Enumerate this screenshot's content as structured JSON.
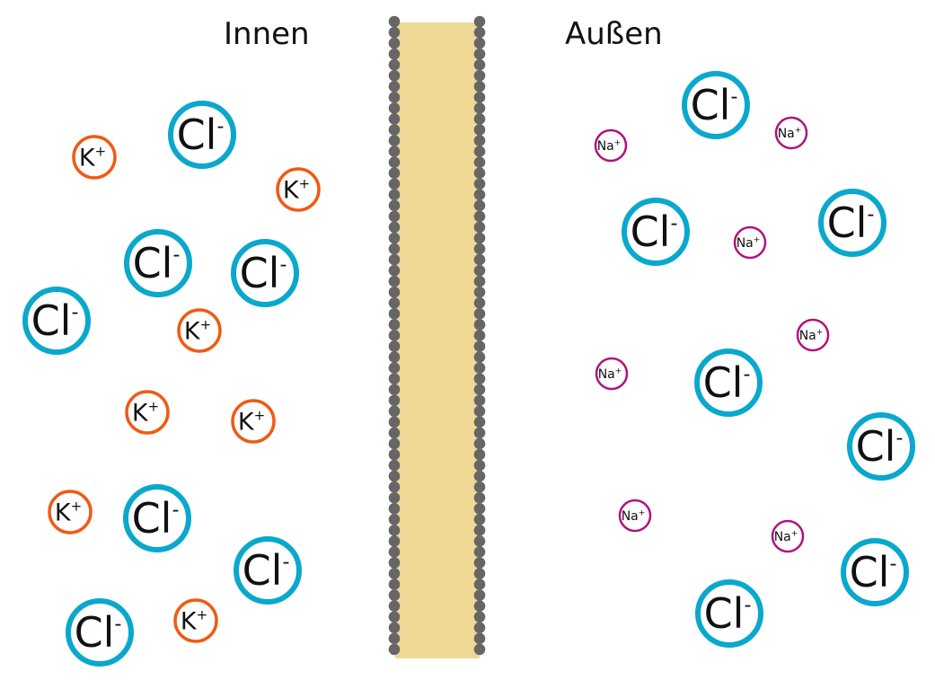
{
  "labels": {
    "inside": "Innen",
    "outside": "Außen"
  },
  "ions": {
    "chloride": {
      "symbol": "Cl",
      "charge": "-",
      "color": "#0aa8cc"
    },
    "potassium": {
      "symbol": "K",
      "charge": "+",
      "color": "#f05a14"
    },
    "sodium": {
      "symbol": "Na",
      "charge": "+",
      "color": "#b0127f"
    }
  },
  "membrane": {
    "fill": "#efd995",
    "head_color": "#666666"
  }
}
